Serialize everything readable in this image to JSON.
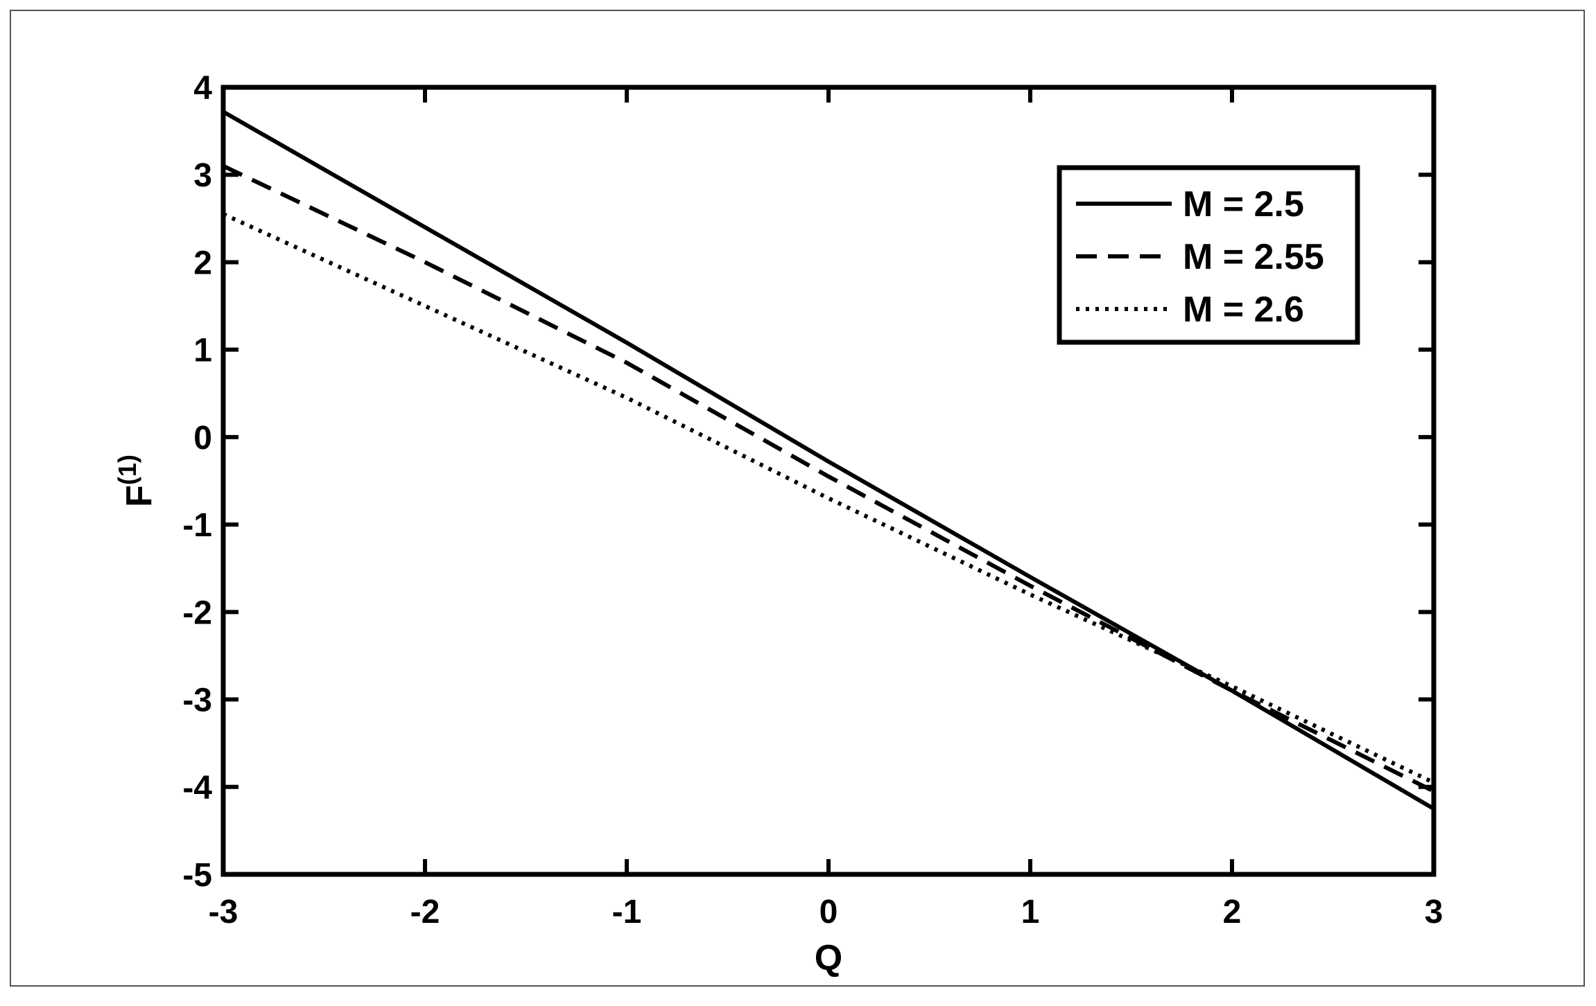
{
  "chart_data": {
    "type": "line",
    "title": "",
    "xlabel": "Q",
    "ylabel_main": "F",
    "ylabel_sup": "(1)",
    "xlim": [
      -3,
      3
    ],
    "ylim": [
      -5,
      4
    ],
    "xticks": [
      -3,
      -2,
      -1,
      0,
      1,
      2,
      3
    ],
    "yticks": [
      -5,
      -4,
      -3,
      -2,
      -1,
      0,
      1,
      2,
      3,
      4
    ],
    "grid": false,
    "legend_position": "top-right",
    "series": [
      {
        "name": "M = 2.5",
        "style": "solid",
        "x": [
          -3,
          -2,
          -1,
          0,
          1,
          2,
          3
        ],
        "y": [
          3.72,
          2.4,
          1.08,
          -0.28,
          -1.6,
          -2.9,
          -4.25
        ]
      },
      {
        "name": "M = 2.55",
        "style": "dashed",
        "x": [
          -3,
          -2,
          -1,
          0,
          1,
          2,
          3
        ],
        "y": [
          3.1,
          2.0,
          0.85,
          -0.45,
          -1.7,
          -2.9,
          -4.05
        ]
      },
      {
        "name": "M = 2.6",
        "style": "dotted",
        "x": [
          -3,
          -2,
          -1,
          0,
          1,
          2,
          3
        ],
        "y": [
          2.55,
          1.5,
          0.45,
          -0.7,
          -1.8,
          -2.85,
          -3.95
        ]
      }
    ]
  }
}
